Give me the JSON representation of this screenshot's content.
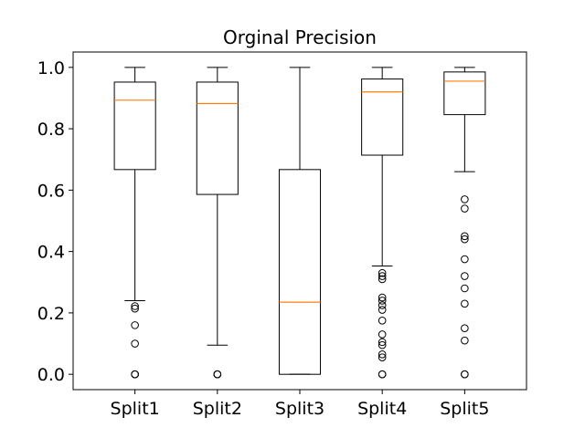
{
  "chart_data": {
    "type": "box",
    "title": "Orginal Precision",
    "xlabel": "",
    "ylabel": "",
    "ylim": [
      -0.05,
      1.05
    ],
    "yticks": [
      0.0,
      0.2,
      0.4,
      0.6,
      0.8,
      1.0
    ],
    "ytick_labels": [
      "0.0",
      "0.2",
      "0.4",
      "0.6",
      "0.8",
      "1.0"
    ],
    "grid": false,
    "colors": {
      "box": "#000000",
      "median": "#ff7f0e"
    },
    "categories": [
      "Split1",
      "Split2",
      "Split3",
      "Split4",
      "Split5"
    ],
    "boxes": [
      {
        "name": "Split1",
        "whisker_low": 0.24,
        "q1": 0.667,
        "median": 0.893,
        "q3": 0.952,
        "whisker_high": 1.0,
        "outliers": [
          0.0,
          0.0,
          0.0,
          0.1,
          0.16,
          0.214,
          0.222
        ]
      },
      {
        "name": "Split2",
        "whisker_low": 0.095,
        "q1": 0.586,
        "median": 0.882,
        "q3": 0.952,
        "whisker_high": 1.0,
        "outliers": [
          0.0,
          0.0,
          0.0
        ]
      },
      {
        "name": "Split3",
        "whisker_low": 0.0,
        "q1": 0.0,
        "median": 0.235,
        "q3": 0.667,
        "whisker_high": 1.0,
        "outliers": []
      },
      {
        "name": "Split4",
        "whisker_low": 0.353,
        "q1": 0.714,
        "median": 0.92,
        "q3": 0.962,
        "whisker_high": 1.0,
        "outliers": [
          0.0,
          0.0,
          0.055,
          0.065,
          0.095,
          0.105,
          0.13,
          0.175,
          0.21,
          0.225,
          0.24,
          0.25,
          0.31,
          0.32,
          0.33
        ]
      },
      {
        "name": "Split5",
        "whisker_low": 0.66,
        "q1": 0.846,
        "median": 0.955,
        "q3": 0.985,
        "whisker_high": 1.0,
        "outliers": [
          0.0,
          0.0,
          0.11,
          0.15,
          0.23,
          0.28,
          0.32,
          0.375,
          0.44,
          0.45,
          0.54,
          0.57
        ]
      }
    ]
  }
}
